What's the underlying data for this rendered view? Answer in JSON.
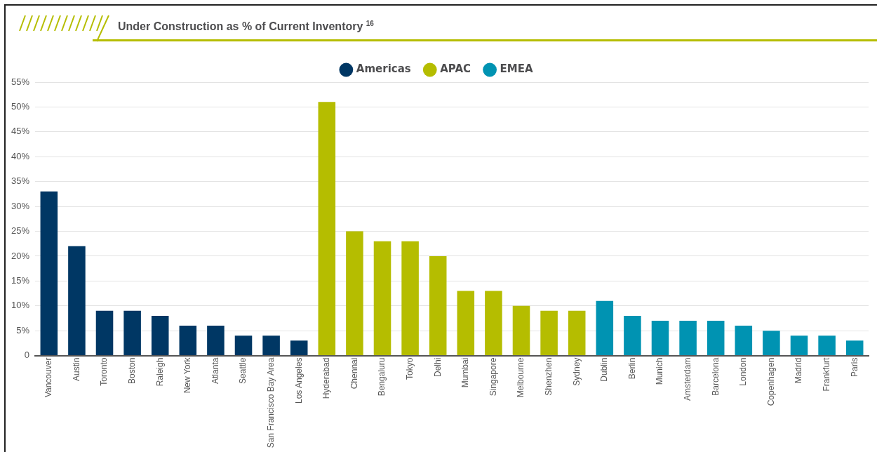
{
  "chart_data": {
    "type": "bar",
    "title": "Under Construction as % of Current Inventory $^{16}$",
    "categories": [
      "Vancouver",
      "Austin",
      "Toronto",
      "Boston",
      "Raleigh",
      "New York",
      "Atlanta",
      "Seattle",
      "San Francisco Bay Area",
      "Los Angeles",
      "Hyderabad",
      "Chennai",
      "Bengaluru",
      "Tokyo",
      "Delhi",
      "Mumbai",
      "Singapore",
      "Melbourne",
      "Shenzhen",
      "Sydney",
      "Dublin",
      "Berlin",
      "Munich",
      "Amsterdam",
      "Barcelona",
      "London",
      "Copenhagen",
      "Madrid",
      "Frankfurt",
      "Paris"
    ],
    "series": [
      {
        "name": "Americas",
        "color": "#003764",
        "values": [
          33,
          22,
          9,
          9,
          8,
          6,
          6,
          4,
          4,
          3,
          null,
          null,
          null,
          null,
          null,
          null,
          null,
          null,
          null,
          null,
          null,
          null,
          null,
          null,
          null,
          null,
          null,
          null,
          null,
          null
        ]
      },
      {
        "name": "APAC",
        "color": "#b5bd00",
        "values": [
          null,
          null,
          null,
          null,
          null,
          null,
          null,
          null,
          null,
          null,
          51,
          25,
          23,
          23,
          20,
          13,
          13,
          10,
          9,
          9,
          null,
          null,
          null,
          null,
          null,
          null,
          null,
          null,
          null,
          null
        ]
      },
      {
        "name": "EMEA",
        "color": "#0093b2",
        "values": [
          null,
          null,
          null,
          null,
          null,
          null,
          null,
          null,
          null,
          null,
          null,
          null,
          null,
          null,
          null,
          null,
          null,
          null,
          null,
          null,
          11,
          8,
          7,
          7,
          7,
          6,
          5,
          4,
          4,
          3
        ]
      }
    ],
    "ylim": [
      0,
      55
    ],
    "yticks": [
      0,
      {
        "value": 5,
        "label": "5%"
      },
      {
        "value": 10,
        "label": "10%"
      },
      {
        "value": 15,
        "label": "15%"
      },
      {
        "value": 20,
        "label": "20%"
      },
      {
        "value": 25,
        "label": "25%"
      },
      {
        "value": 30,
        "label": "30%"
      },
      {
        "value": 35,
        "label": "35%"
      },
      {
        "value": 40,
        "label": "40%"
      },
      {
        "value": 45,
        "label": "45%"
      },
      {
        "value": 50,
        "label": "50%"
      },
      {
        "value": 55,
        "label": "55%"
      }
    ],
    "grid": "y",
    "legend": "top"
  }
}
